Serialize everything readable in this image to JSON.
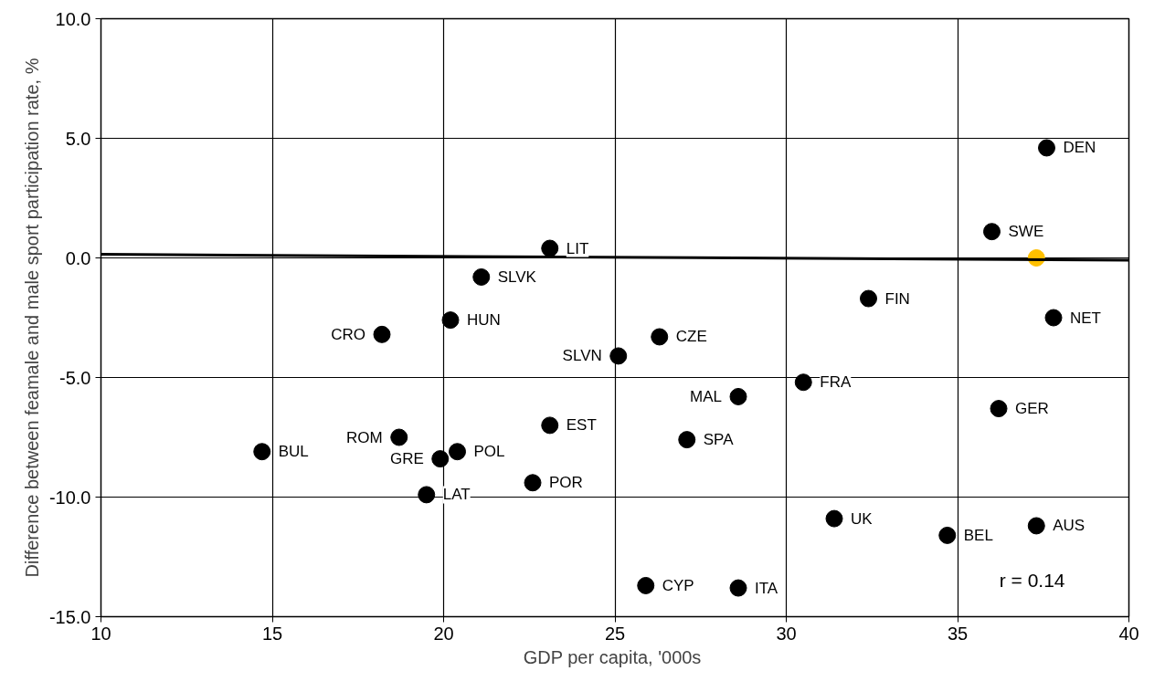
{
  "chart_data": {
    "type": "scatter",
    "xlabel": "GDP per capita,  '000s",
    "ylabel": "Difference between feamale and male sport participation rate, %",
    "xlim": [
      10,
      40
    ],
    "xticks": [
      10,
      15,
      20,
      25,
      30,
      35,
      40
    ],
    "ylim": [
      -15,
      10
    ],
    "yticks": [
      {
        "value": -15,
        "label": "-15.0"
      },
      {
        "value": -10,
        "label": "-10.0"
      },
      {
        "value": -5,
        "label": "-5.0"
      },
      {
        "value": 0,
        "label": "0.0"
      },
      {
        "value": 5,
        "label": "5.0"
      },
      {
        "value": 10,
        "label": "10.0"
      }
    ],
    "grid": true,
    "marker": "circle",
    "series": [
      {
        "color": "#000000",
        "x": [
          37.6,
          36.0,
          23.1,
          21.1,
          32.4,
          20.2,
          18.2,
          37.8,
          26.3,
          25.1,
          30.5,
          28.6,
          36.2,
          23.1,
          18.7,
          27.1,
          14.7,
          20.4,
          19.9,
          22.6,
          19.5,
          31.4,
          34.7,
          37.3,
          25.9,
          28.6
        ],
        "values": [
          4.6,
          1.1,
          0.4,
          -0.8,
          -1.7,
          -2.6,
          -3.2,
          -2.5,
          -3.3,
          -4.1,
          -5.2,
          -5.8,
          -6.3,
          -7.0,
          -7.5,
          -7.6,
          -8.1,
          -8.1,
          -8.4,
          -9.4,
          -9.9,
          -10.9,
          -11.6,
          -11.2,
          -13.7,
          -13.8
        ]
      },
      {
        "color": "#ffc000",
        "x": [
          37.3
        ],
        "values": [
          0.0
        ]
      },
      {
        "type": "line",
        "color": "#000000",
        "marker": "none",
        "x": [
          10,
          40
        ],
        "values": [
          0.15,
          -0.1
        ]
      }
    ],
    "annotations": [
      {
        "text": "DEN",
        "x": 37.6,
        "y": 4.6
      },
      {
        "text": "SWE",
        "x": 36.0,
        "y": 1.1
      },
      {
        "text": "LIT",
        "x": 23.1,
        "y": 0.4
      },
      {
        "text": "SLVK",
        "x": 21.1,
        "y": -0.8
      },
      {
        "text": "FIN",
        "x": 32.4,
        "y": -1.7
      },
      {
        "text": "HUN",
        "x": 20.2,
        "y": -2.6
      },
      {
        "text": "CRO",
        "x": 18.2,
        "y": -3.2
      },
      {
        "text": "NET",
        "x": 37.8,
        "y": -2.5
      },
      {
        "text": "CZE",
        "x": 26.3,
        "y": -3.3
      },
      {
        "text": "SLVN",
        "x": 25.1,
        "y": -4.1
      },
      {
        "text": "FRA",
        "x": 30.5,
        "y": -5.2
      },
      {
        "text": "MAL",
        "x": 28.6,
        "y": -5.8
      },
      {
        "text": "GER",
        "x": 36.2,
        "y": -6.3
      },
      {
        "text": "EST",
        "x": 23.1,
        "y": -7.0
      },
      {
        "text": "ROM",
        "x": 18.7,
        "y": -7.5
      },
      {
        "text": "SPA",
        "x": 27.1,
        "y": -7.6
      },
      {
        "text": "BUL",
        "x": 14.7,
        "y": -8.1
      },
      {
        "text": "POL",
        "x": 20.4,
        "y": -8.1
      },
      {
        "text": "GRE",
        "x": 19.9,
        "y": -8.4
      },
      {
        "text": "POR",
        "x": 22.6,
        "y": -9.4
      },
      {
        "text": "LAT",
        "x": 19.5,
        "y": -9.9
      },
      {
        "text": "UK",
        "x": 31.4,
        "y": -10.9
      },
      {
        "text": "BEL",
        "x": 34.7,
        "y": -11.6
      },
      {
        "text": "AUS",
        "x": 37.3,
        "y": -11.2
      },
      {
        "text": "CYP",
        "x": 25.9,
        "y": -13.7
      },
      {
        "text": "ITA",
        "x": 28.6,
        "y": -13.8
      },
      "r = 0.14"
    ]
  }
}
